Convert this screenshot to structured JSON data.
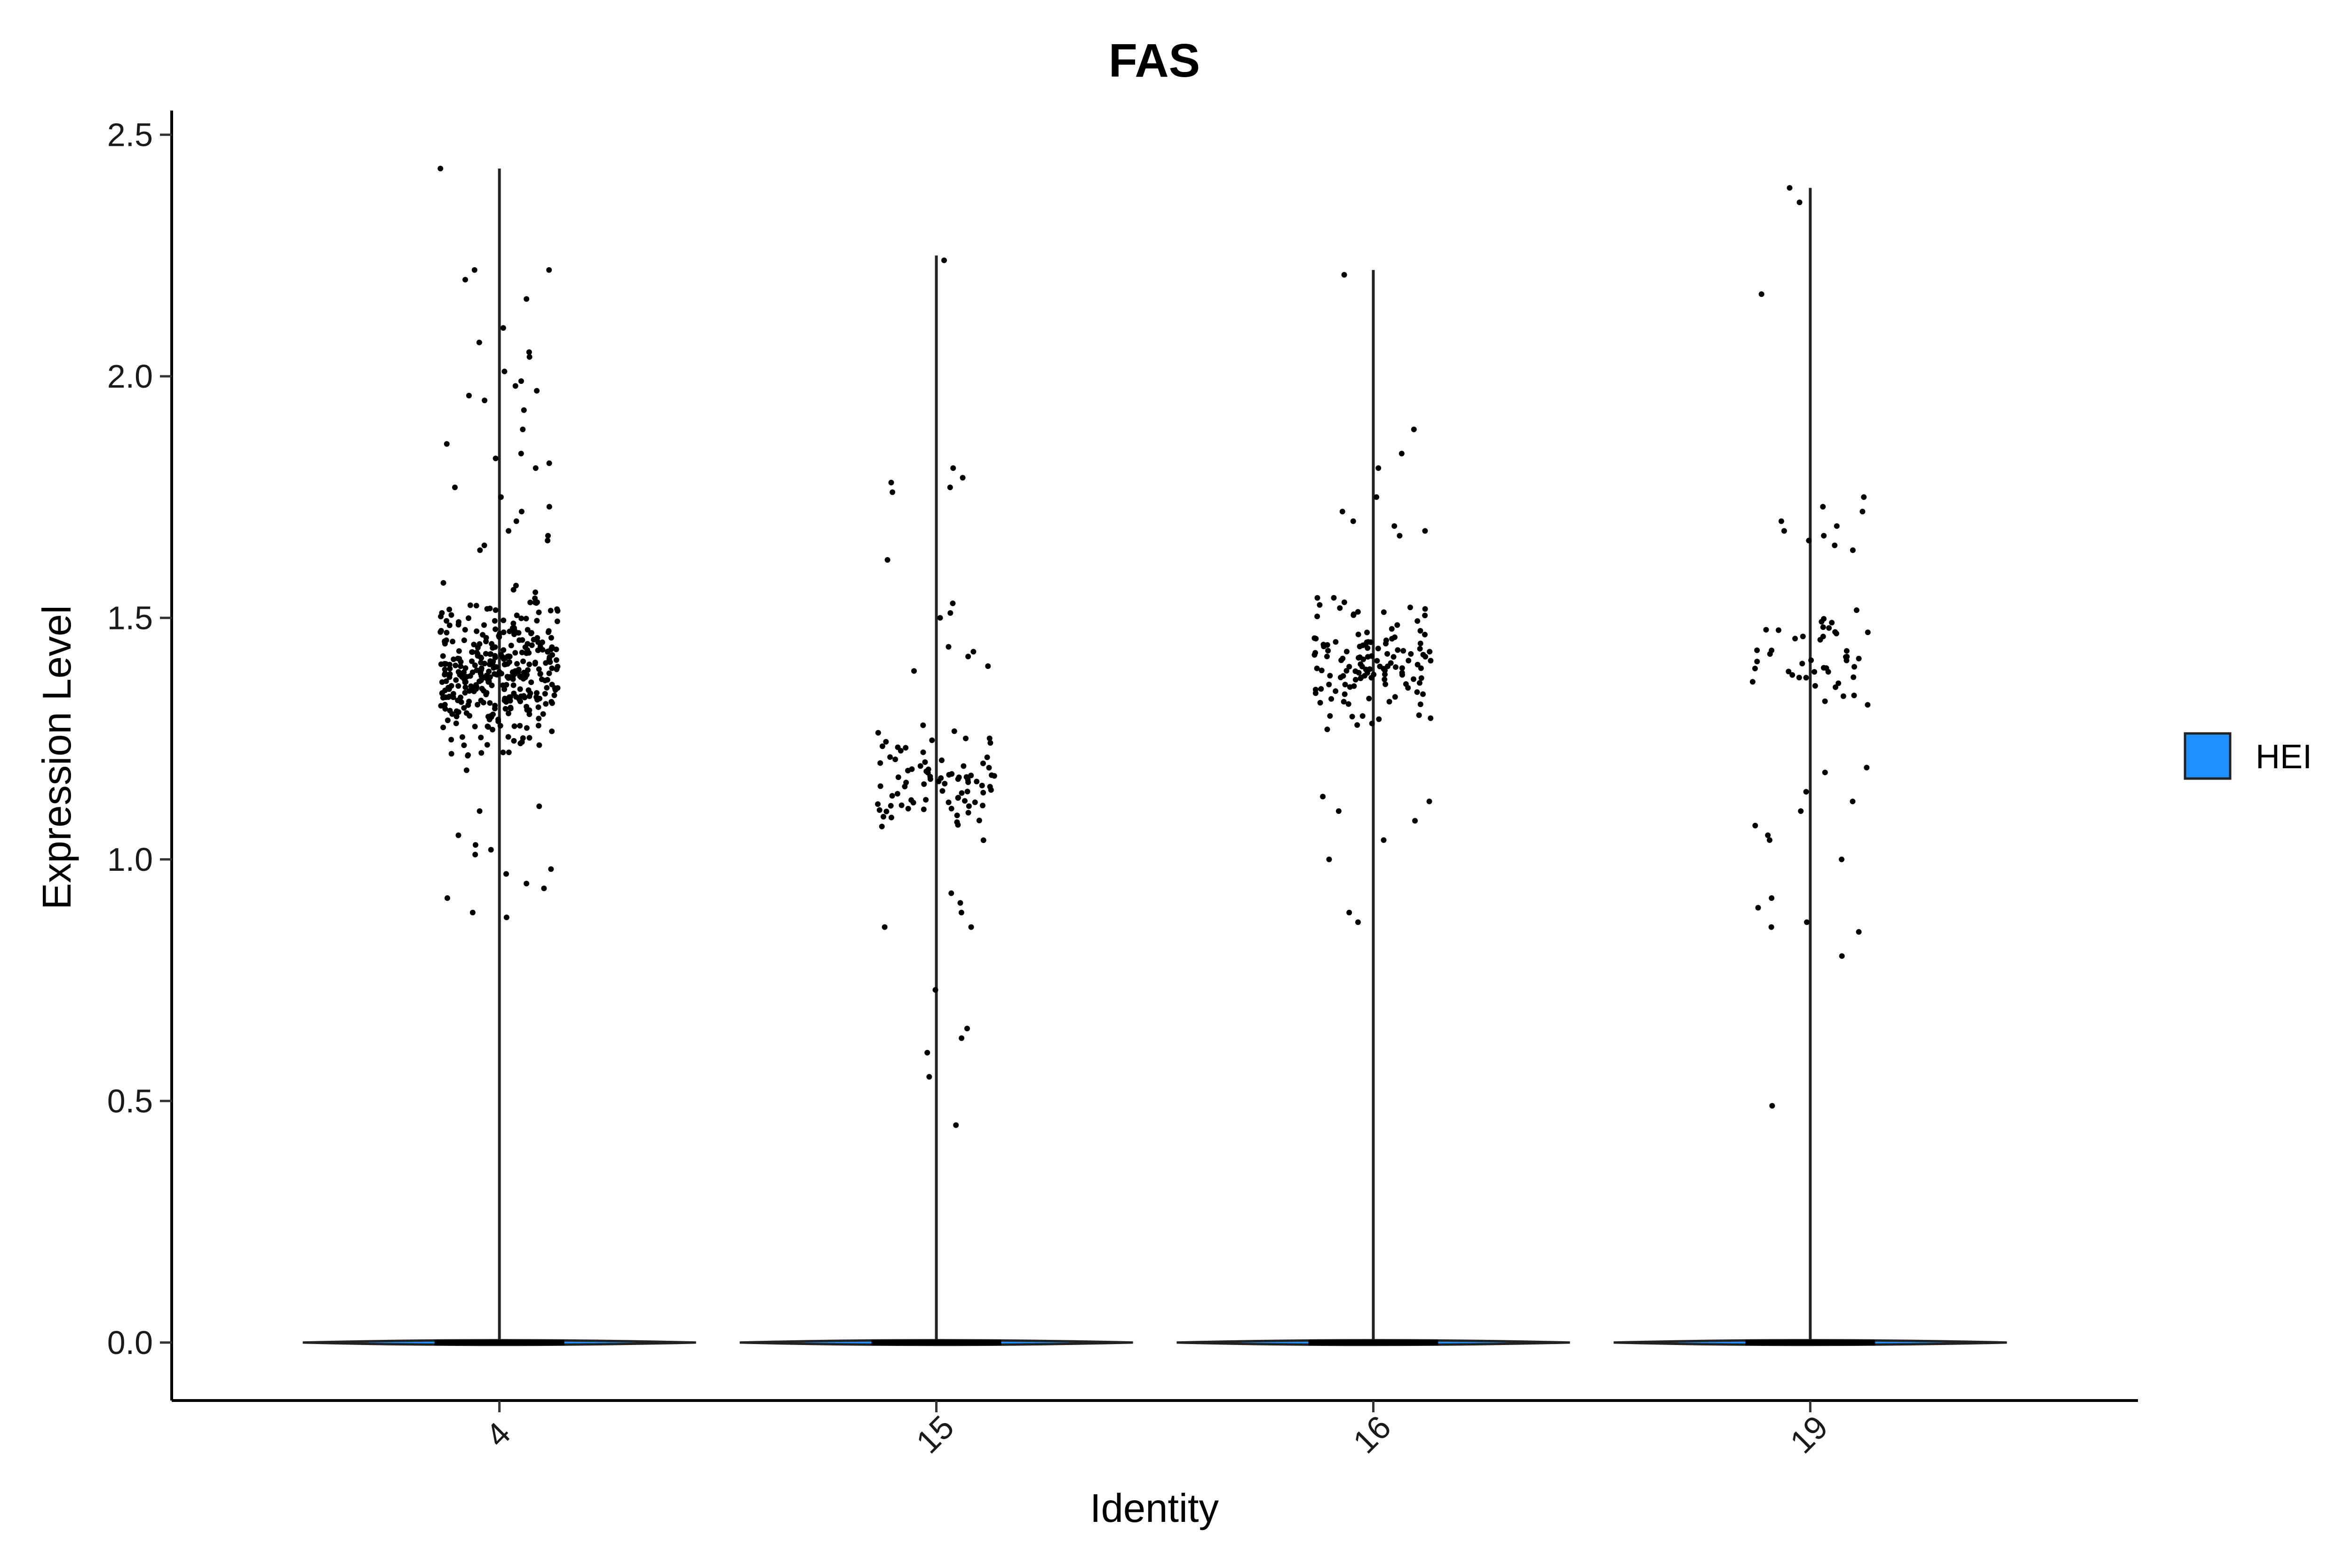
{
  "chart_data": {
    "type": "violin",
    "title": "FAS",
    "xlabel": "Identity",
    "ylabel": "Expression Level",
    "categories": [
      "4",
      "15",
      "16",
      "19"
    ],
    "ylim": [
      -0.12,
      2.55
    ],
    "yticks": [
      "0.0",
      "0.5",
      "1.0",
      "1.5",
      "2.0",
      "2.5"
    ],
    "ytick_values": [
      0,
      0.5,
      1.0,
      1.5,
      2.0,
      2.5
    ],
    "grid": false,
    "legend": {
      "position": "right",
      "entries": [
        {
          "name": "HEI",
          "color": "#1E90FF"
        }
      ]
    },
    "series": [
      {
        "name": "HEI",
        "color": "#1E90FF"
      }
    ],
    "violins": [
      {
        "category": "4",
        "max": 2.43,
        "nonzero_cells": 450,
        "median": 0
      },
      {
        "category": "15",
        "max": 2.25,
        "nonzero_cells": 110,
        "median": 0
      },
      {
        "category": "16",
        "max": 2.22,
        "nonzero_cells": 150,
        "median": 0
      },
      {
        "category": "19",
        "max": 2.39,
        "nonzero_cells": 75,
        "median": 0
      }
    ],
    "points": {
      "4": [
        2.43,
        2.22,
        2.22,
        2.2,
        2.16,
        2.1,
        2.07,
        2.05,
        2.04,
        2.01,
        1.99,
        1.98,
        1.97,
        1.96,
        1.95,
        1.93,
        1.89,
        1.86,
        1.84,
        1.83,
        1.82,
        1.81,
        1.77,
        1.75,
        1.73,
        1.72,
        1.7,
        1.68,
        1.67,
        1.66,
        1.65,
        1.64,
        1.11,
        1.1,
        1.05,
        1.03,
        1.02,
        1.01,
        0.98,
        0.97,
        0.95,
        0.94,
        0.92,
        0.89,
        0.88
      ],
      "15": [
        2.24,
        1.81,
        1.79,
        1.78,
        1.77,
        1.76,
        1.62,
        1.53,
        1.51,
        1.5,
        1.44,
        1.43,
        1.42,
        1.4,
        1.39,
        0.93,
        0.91,
        0.89,
        0.86,
        0.86,
        0.73,
        0.65,
        0.63,
        0.6,
        0.55,
        0.45
      ],
      "16": [
        2.21,
        1.89,
        1.84,
        1.81,
        1.75,
        1.72,
        1.7,
        1.69,
        1.68,
        1.67,
        1.13,
        1.12,
        1.1,
        1.08,
        1.04,
        1.0,
        0.89,
        0.87
      ],
      "19": [
        2.39,
        2.36,
        2.17,
        1.75,
        1.73,
        1.72,
        1.7,
        1.69,
        1.68,
        1.67,
        1.66,
        1.65,
        1.64,
        1.19,
        1.18,
        1.14,
        1.12,
        1.1,
        1.07,
        1.05,
        1.04,
        1.0,
        0.92,
        0.9,
        0.87,
        0.86,
        0.85,
        0.8,
        0.49
      ]
    },
    "point_bulk": {
      "4": {
        "count": 360,
        "low": 1.1,
        "high": 1.66
      },
      "15": {
        "count": 85,
        "low": 0.95,
        "high": 1.38
      },
      "16": {
        "count": 130,
        "low": 1.15,
        "high": 1.66
      },
      "19": {
        "count": 45,
        "low": 1.2,
        "high": 1.62
      }
    }
  }
}
